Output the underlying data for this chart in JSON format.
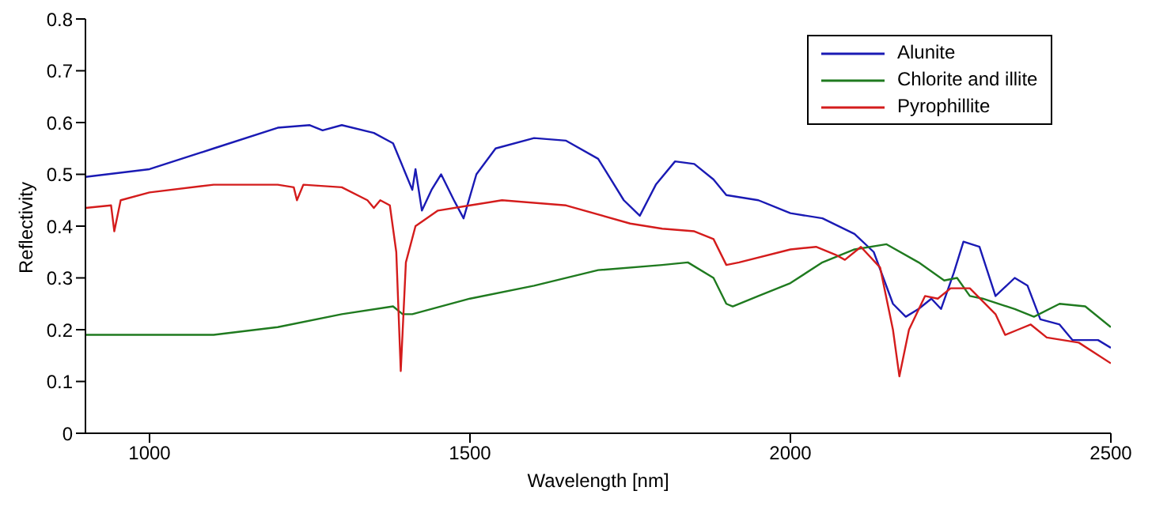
{
  "chart_data": {
    "type": "line",
    "xlabel": "Wavelength [nm]",
    "ylabel": "Reflectivity",
    "xlim": [
      900,
      2500
    ],
    "xticks": [
      1000,
      1500,
      2000,
      2500
    ],
    "ylim": [
      0,
      0.8
    ],
    "yticks": [
      0,
      0.1,
      0.2,
      0.3,
      0.4,
      0.5,
      0.6,
      0.7,
      0.8
    ],
    "grid": false,
    "legend": "top right",
    "marker": "none",
    "line_style": "solid",
    "series": [
      {
        "name": "Alunite",
        "color": "#1a1ab4",
        "x": [
          900,
          1000,
          1100,
          1200,
          1250,
          1270,
          1300,
          1350,
          1380,
          1400,
          1410,
          1415,
          1425,
          1440,
          1455,
          1475,
          1490,
          1510,
          1540,
          1600,
          1650,
          1700,
          1740,
          1765,
          1790,
          1820,
          1850,
          1880,
          1900,
          1950,
          1990,
          2000,
          2050,
          2100,
          2130,
          2160,
          2180,
          2200,
          2220,
          2235,
          2255,
          2270,
          2295,
          2320,
          2350,
          2370,
          2390,
          2420,
          2440,
          2480,
          2500
        ],
        "values": [
          0.495,
          0.51,
          0.55,
          0.59,
          0.595,
          0.585,
          0.595,
          0.58,
          0.56,
          0.5,
          0.47,
          0.51,
          0.43,
          0.47,
          0.5,
          0.45,
          0.415,
          0.5,
          0.55,
          0.57,
          0.565,
          0.53,
          0.45,
          0.42,
          0.48,
          0.525,
          0.52,
          0.49,
          0.46,
          0.45,
          0.43,
          0.425,
          0.415,
          0.385,
          0.35,
          0.25,
          0.225,
          0.24,
          0.26,
          0.24,
          0.31,
          0.37,
          0.36,
          0.265,
          0.3,
          0.285,
          0.22,
          0.21,
          0.18,
          0.18,
          0.165
        ]
      },
      {
        "name": "Chlorite and illite",
        "color": "#1f7a1f",
        "x": [
          900,
          1000,
          1100,
          1200,
          1300,
          1380,
          1395,
          1410,
          1500,
          1600,
          1700,
          1800,
          1840,
          1880,
          1900,
          1910,
          1950,
          2000,
          2050,
          2100,
          2150,
          2200,
          2240,
          2260,
          2280,
          2300,
          2350,
          2380,
          2420,
          2460,
          2500
        ],
        "values": [
          0.19,
          0.19,
          0.19,
          0.205,
          0.23,
          0.245,
          0.23,
          0.23,
          0.26,
          0.285,
          0.315,
          0.325,
          0.33,
          0.3,
          0.25,
          0.245,
          0.265,
          0.29,
          0.33,
          0.355,
          0.365,
          0.33,
          0.295,
          0.3,
          0.265,
          0.26,
          0.24,
          0.225,
          0.25,
          0.245,
          0.205
        ]
      },
      {
        "name": "Pyrophillite",
        "color": "#d41c1c",
        "x": [
          900,
          940,
          945,
          955,
          1000,
          1100,
          1200,
          1225,
          1230,
          1240,
          1300,
          1340,
          1350,
          1360,
          1375,
          1385,
          1392,
          1400,
          1415,
          1450,
          1500,
          1550,
          1650,
          1750,
          1800,
          1850,
          1880,
          1900,
          1920,
          2000,
          2040,
          2070,
          2085,
          2110,
          2140,
          2160,
          2170,
          2185,
          2210,
          2230,
          2250,
          2280,
          2320,
          2335,
          2355,
          2375,
          2400,
          2450,
          2500
        ],
        "values": [
          0.435,
          0.44,
          0.39,
          0.45,
          0.465,
          0.48,
          0.48,
          0.475,
          0.45,
          0.48,
          0.475,
          0.45,
          0.435,
          0.45,
          0.44,
          0.35,
          0.12,
          0.33,
          0.4,
          0.43,
          0.44,
          0.45,
          0.44,
          0.405,
          0.395,
          0.39,
          0.375,
          0.325,
          0.33,
          0.355,
          0.36,
          0.345,
          0.335,
          0.36,
          0.32,
          0.2,
          0.11,
          0.2,
          0.265,
          0.26,
          0.28,
          0.28,
          0.23,
          0.19,
          0.2,
          0.21,
          0.185,
          0.175,
          0.135
        ]
      }
    ]
  }
}
